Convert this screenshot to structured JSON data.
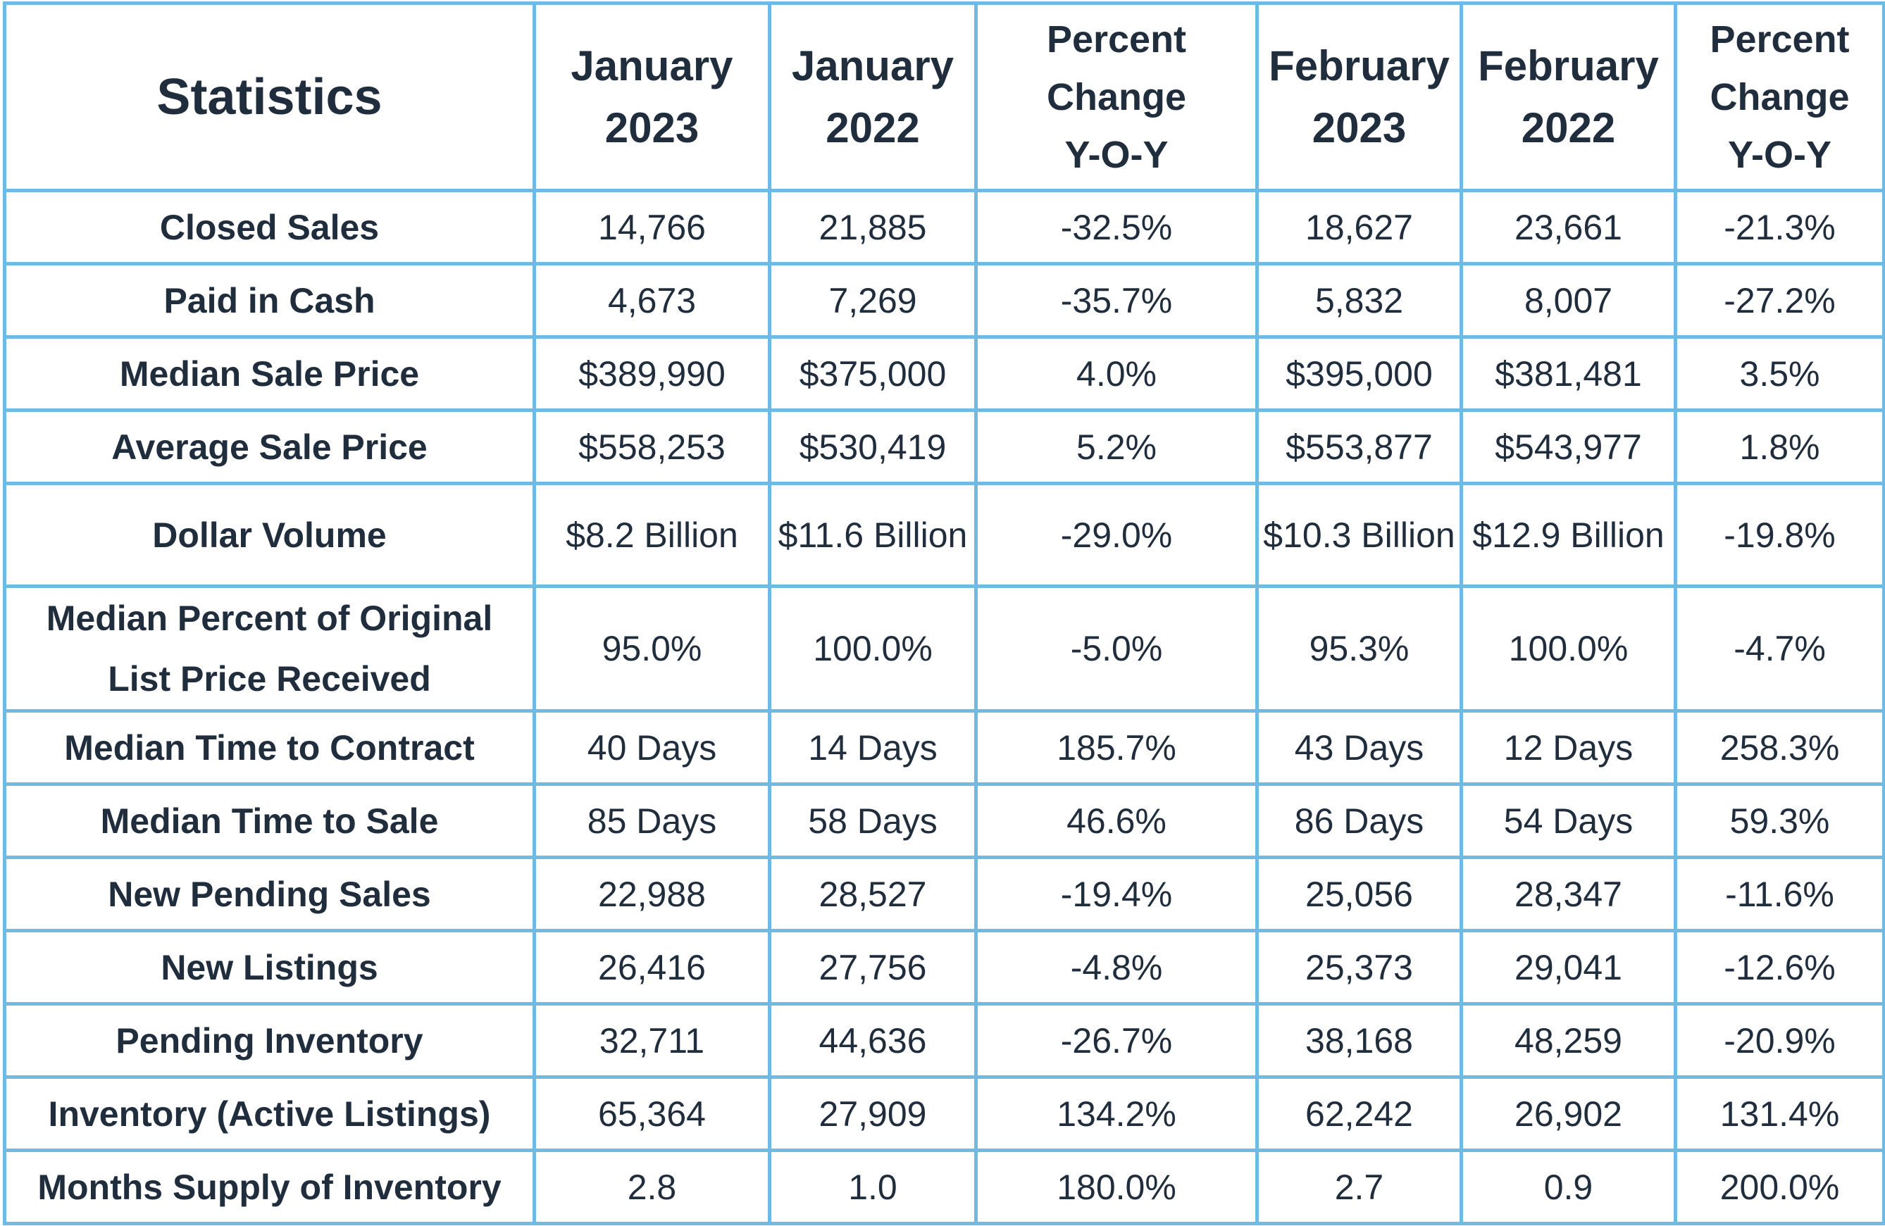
{
  "header": {
    "statistics": "Statistics",
    "jan2023": [
      "January",
      "2023"
    ],
    "jan2022": [
      "January",
      "2022"
    ],
    "pct1": [
      "Percent",
      "Change",
      "Y-O-Y"
    ],
    "feb2023": [
      "February",
      "2023"
    ],
    "feb2022": [
      "February",
      "2022"
    ],
    "pct2": [
      "Percent",
      "Change",
      "Y-O-Y"
    ]
  },
  "rows": [
    {
      "label": "Closed Sales",
      "jan2023": "14,766",
      "jan2022": "21,885",
      "pct1": "-32.5%",
      "feb2023": "18,627",
      "feb2022": "23,661",
      "pct2": "-21.3%"
    },
    {
      "label": "Paid in Cash",
      "jan2023": "4,673",
      "jan2022": "7,269",
      "pct1": "-35.7%",
      "feb2023": "5,832",
      "feb2022": "8,007",
      "pct2": "-27.2%"
    },
    {
      "label": "Median Sale Price",
      "jan2023": "$389,990",
      "jan2022": "$375,000",
      "pct1": "4.0%",
      "feb2023": "$395,000",
      "feb2022": "$381,481",
      "pct2": "3.5%"
    },
    {
      "label": "Average Sale Price",
      "jan2023": "$558,253",
      "jan2022": "$530,419",
      "pct1": "5.2%",
      "feb2023": "$553,877",
      "feb2022": "$543,977",
      "pct2": "1.8%"
    },
    {
      "label": "Dollar Volume",
      "jan2023": "$8.2 Billion",
      "jan2022": "$11.6 Billion",
      "pct1": "-29.0%",
      "feb2023": "$10.3 Billion",
      "feb2022": "$12.9 Billion",
      "pct2": "-19.8%"
    },
    {
      "label": "Median Percent of Original List Price Received",
      "jan2023": "95.0%",
      "jan2022": "100.0%",
      "pct1": "-5.0%",
      "feb2023": "95.3%",
      "feb2022": "100.0%",
      "pct2": "-4.7%"
    },
    {
      "label": "Median Time to Contract",
      "jan2023": "40 Days",
      "jan2022": "14 Days",
      "pct1": "185.7%",
      "feb2023": "43 Days",
      "feb2022": "12 Days",
      "pct2": "258.3%"
    },
    {
      "label": "Median Time to Sale",
      "jan2023": "85 Days",
      "jan2022": "58 Days",
      "pct1": "46.6%",
      "feb2023": "86 Days",
      "feb2022": "54 Days",
      "pct2": "59.3%"
    },
    {
      "label": "New Pending Sales",
      "jan2023": "22,988",
      "jan2022": "28,527",
      "pct1": "-19.4%",
      "feb2023": "25,056",
      "feb2022": "28,347",
      "pct2": "-11.6%"
    },
    {
      "label": "New Listings",
      "jan2023": "26,416",
      "jan2022": "27,756",
      "pct1": "-4.8%",
      "feb2023": "25,373",
      "feb2022": "29,041",
      "pct2": "-12.6%"
    },
    {
      "label": "Pending Inventory",
      "jan2023": "32,711",
      "jan2022": "44,636",
      "pct1": "-26.7%",
      "feb2023": "38,168",
      "feb2022": "48,259",
      "pct2": "-20.9%"
    },
    {
      "label": "Inventory (Active Listings)",
      "jan2023": "65,364",
      "jan2022": "27,909",
      "pct1": "134.2%",
      "feb2023": "62,242",
      "feb2022": "26,902",
      "pct2": "131.4%"
    },
    {
      "label": "Months Supply of Inventory",
      "jan2023": "2.8",
      "jan2022": "1.0",
      "pct1": "180.0%",
      "feb2023": "2.7",
      "feb2022": "0.9",
      "pct2": "200.0%"
    }
  ]
}
